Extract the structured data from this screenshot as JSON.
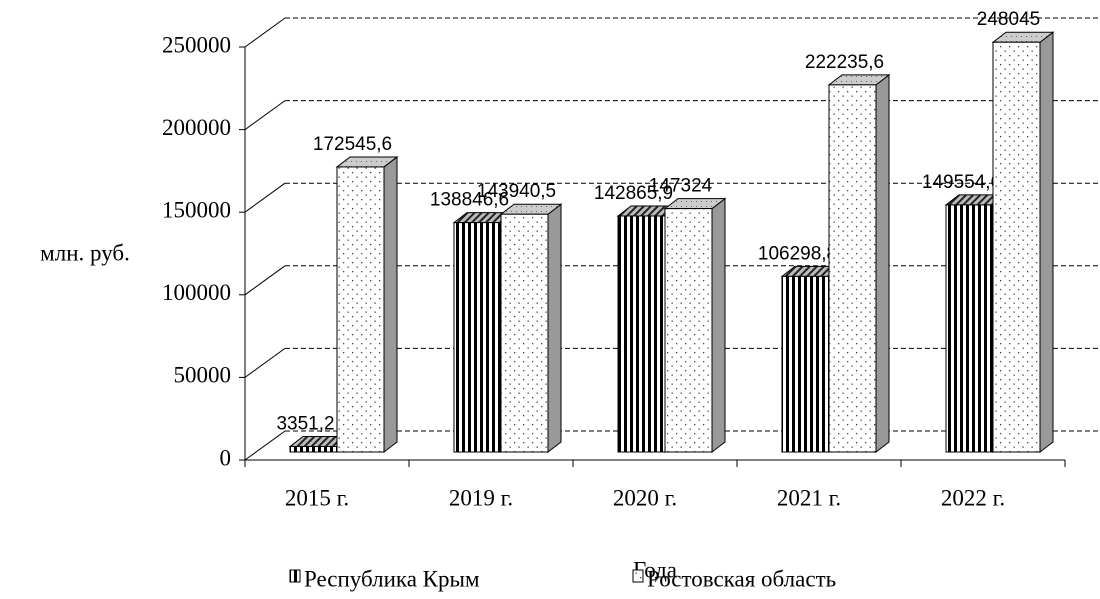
{
  "chart_data": {
    "type": "bar3d",
    "y_label": "млн. руб.",
    "x_label": "Года",
    "categories": [
      "2015 г.",
      "2019 г.",
      "2020 г.",
      "2021 г.",
      "2022 г."
    ],
    "series": [
      {
        "name": "Республика Крым",
        "color": "#000000",
        "pattern": "vertical-stripes",
        "values": [
          3351.2,
          138846.6,
          142865.9,
          106298.8,
          149554.6
        ],
        "value_labels": [
          "3351,2",
          "138846,6",
          "142865,9",
          "106298,8",
          "149554,6"
        ]
      },
      {
        "name": "Ростовская область",
        "color": "#ffffff",
        "pattern": "dots",
        "values": [
          172545.6,
          143940.5,
          147324,
          222235.6,
          248045
        ],
        "value_labels": [
          "172545,6",
          "143940,5",
          "147324",
          "222235,6",
          "248045"
        ]
      }
    ],
    "ylim": [
      0,
      250000
    ],
    "yticks": [
      0,
      50000,
      100000,
      150000,
      200000,
      250000
    ],
    "grid": true,
    "legend": "bottom"
  }
}
